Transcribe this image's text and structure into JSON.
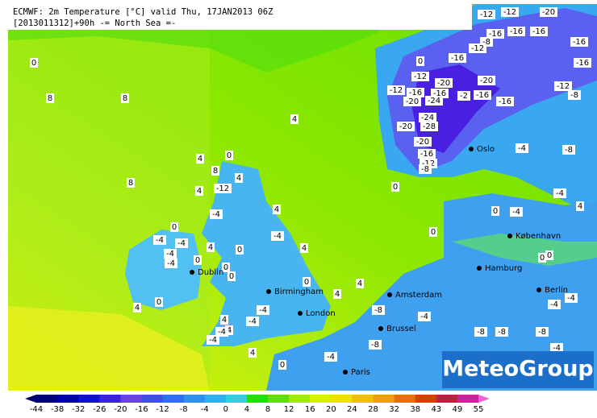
{
  "header": {
    "line1": "ECMWF: 2m Temperature [°C] valid Thu, 17JAN2013 06Z",
    "line2": "[2013011312]+90h -= North Sea =-"
  },
  "cities": [
    "Oslo",
    "København",
    "Hamburg",
    "Berlin",
    "Amsterdam",
    "Brussel",
    "Dublin",
    "Birmingham",
    "London",
    "Paris"
  ],
  "contour_labels": [
    0,
    8,
    8,
    8,
    4,
    0,
    0,
    0,
    4,
    4,
    0,
    4,
    4,
    0,
    0,
    4,
    0,
    8,
    4,
    -12,
    4,
    -4,
    4,
    -4,
    4,
    0,
    4,
    0,
    -4,
    -4,
    -4,
    -4,
    0,
    0,
    -4,
    -4,
    4,
    4,
    -4,
    -4,
    -8,
    -4,
    -8,
    -4,
    -8,
    -8,
    -8,
    -4,
    -4,
    -4,
    0,
    0,
    0,
    -4,
    4,
    -4,
    -4,
    -8,
    -12,
    -12,
    -20,
    -16,
    -16,
    -16,
    -8,
    -12,
    -16,
    -16,
    -16,
    0,
    -12,
    -20,
    -20,
    -12,
    -16,
    -16,
    -2,
    -16,
    -20,
    -24,
    -16,
    -12,
    -8,
    -24,
    -28,
    -20,
    -20,
    -16,
    -12,
    -8
  ],
  "scale_labels": [
    -44,
    -38,
    -32,
    -26,
    -20,
    -16,
    -12,
    -8,
    -4,
    0,
    4,
    8,
    12,
    16,
    20,
    24,
    28,
    32,
    38,
    43,
    49,
    55
  ],
  "logo": "MeteoGroup"
}
